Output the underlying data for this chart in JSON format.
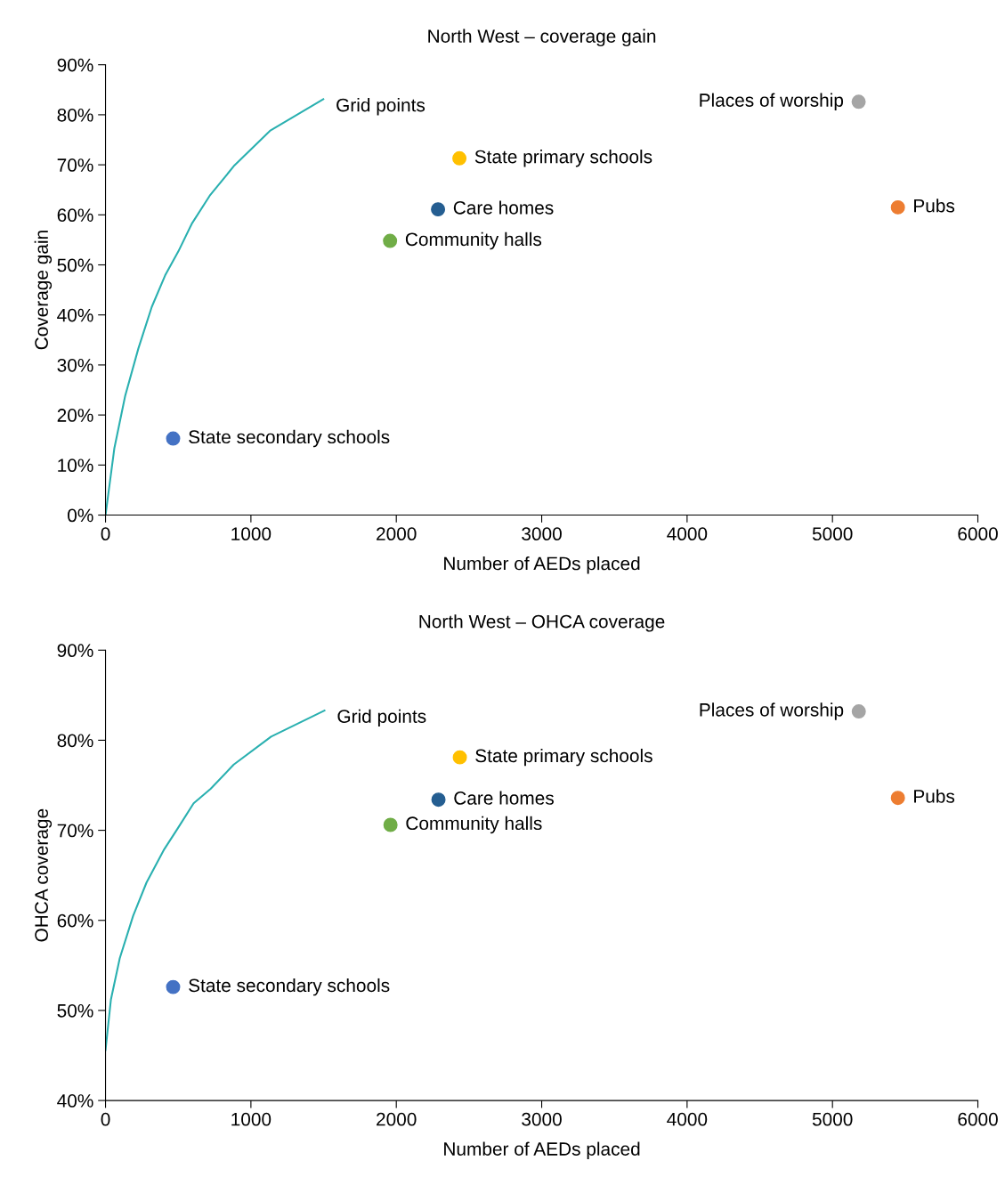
{
  "chart_data": [
    {
      "type": "scatter",
      "title": "North West – coverage gain",
      "xlabel": "Number of AEDs placed",
      "ylabel": "Coverage gain",
      "xlim": [
        0,
        6000
      ],
      "xticks": [
        0,
        1000,
        2000,
        3000,
        4000,
        5000,
        6000
      ],
      "ylim": [
        0,
        90
      ],
      "yticks": [
        {
          "value": 0,
          "label": "0%"
        },
        {
          "value": 10,
          "label": "10%"
        },
        {
          "value": 20,
          "label": "20%"
        },
        {
          "value": 30,
          "label": "30%"
        },
        {
          "value": 40,
          "label": "40%"
        },
        {
          "value": 50,
          "label": "50%"
        },
        {
          "value": 60,
          "label": "60%"
        },
        {
          "value": 70,
          "label": "70%"
        },
        {
          "value": 80,
          "label": "80%"
        },
        {
          "value": 90,
          "label": "90%"
        }
      ],
      "grid": false,
      "legend": false,
      "series": [
        {
          "name": "Grid points",
          "type": "line",
          "color": "#2ab0b0",
          "x": [
            0,
            61,
            135,
            226,
            318,
            410,
            501,
            593,
            716,
            887,
            1131,
            1498
          ],
          "values": [
            0,
            13.4,
            23.8,
            33.3,
            41.6,
            47.9,
            52.7,
            58.2,
            63.8,
            69.9,
            76.8,
            83.1
          ]
        },
        {
          "name": "State secondary schools",
          "color": "#4472c4",
          "x": [
            465
          ],
          "values": [
            15.3
          ]
        },
        {
          "name": "Community halls",
          "color": "#70ad47",
          "x": [
            1957
          ],
          "values": [
            54.8
          ]
        },
        {
          "name": "Care homes",
          "color": "#255e91",
          "x": [
            2287
          ],
          "values": [
            61.1
          ]
        },
        {
          "name": "State primary schools",
          "color": "#ffc000",
          "x": [
            2434
          ],
          "values": [
            71.3
          ]
        },
        {
          "name": "Places of worship",
          "color": "#a5a5a5",
          "x": [
            5180
          ],
          "values": [
            82.6
          ]
        },
        {
          "name": "Pubs",
          "color": "#ed7d31",
          "x": [
            5450
          ],
          "values": [
            61.5
          ]
        }
      ]
    },
    {
      "type": "scatter",
      "title": "North West – OHCA coverage",
      "xlabel": "Number of AEDs placed",
      "ylabel": "OHCA coverage",
      "xlim": [
        0,
        6000
      ],
      "xticks": [
        0,
        1000,
        2000,
        3000,
        4000,
        5000,
        6000
      ],
      "ylim": [
        40,
        90
      ],
      "yticks": [
        {
          "value": 40,
          "label": "40%"
        },
        {
          "value": 50,
          "label": "50%"
        },
        {
          "value": 60,
          "label": "60%"
        },
        {
          "value": 70,
          "label": "70%"
        },
        {
          "value": 80,
          "label": "80%"
        },
        {
          "value": 90,
          "label": "90%"
        }
      ],
      "grid": false,
      "legend": false,
      "series": [
        {
          "name": "Grid points",
          "type": "line",
          "color": "#2ab0b0",
          "x": [
            0,
            37,
            98,
            190,
            282,
            404,
            496,
            606,
            723,
            882,
            1139,
            1506
          ],
          "values": [
            45.6,
            51.2,
            55.8,
            60.5,
            64.2,
            67.9,
            70.2,
            73.0,
            74.6,
            77.3,
            80.4,
            83.3
          ]
        },
        {
          "name": "State secondary schools",
          "color": "#4472c4",
          "x": [
            465
          ],
          "values": [
            52.6
          ]
        },
        {
          "name": "Community halls",
          "color": "#70ad47",
          "x": [
            1960
          ],
          "values": [
            70.6
          ]
        },
        {
          "name": "Care homes",
          "color": "#255e91",
          "x": [
            2290
          ],
          "values": [
            73.4
          ]
        },
        {
          "name": "State primary schools",
          "color": "#ffc000",
          "x": [
            2437
          ],
          "values": [
            78.1
          ]
        },
        {
          "name": "Places of worship",
          "color": "#a5a5a5",
          "x": [
            5181
          ],
          "values": [
            83.2
          ]
        },
        {
          "name": "Pubs",
          "color": "#ed7d31",
          "x": [
            5450
          ],
          "values": [
            73.6
          ]
        }
      ]
    }
  ]
}
